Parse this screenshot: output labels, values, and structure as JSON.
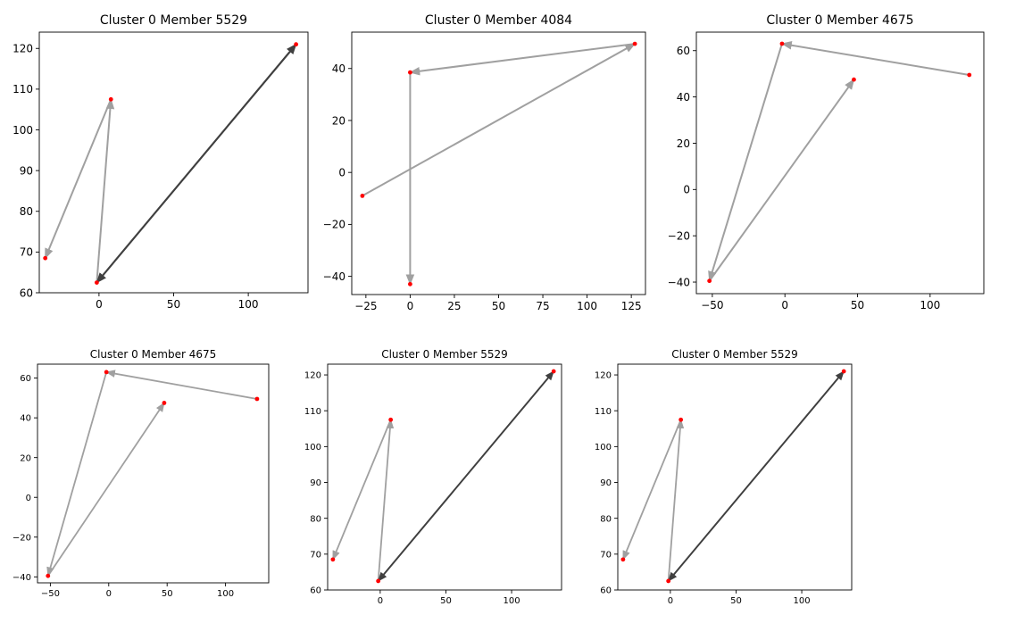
{
  "chart_data": [
    {
      "type": "line",
      "title": "Cluster 0 Member 5529",
      "xlim": [
        -40,
        140
      ],
      "ylim": [
        60,
        124
      ],
      "xticks": [
        0,
        50,
        100
      ],
      "yticks": [
        60,
        70,
        80,
        90,
        100,
        110,
        120
      ],
      "points": [
        [
          -36,
          68.5
        ],
        [
          -1.5,
          62.5
        ],
        [
          8,
          107.5
        ],
        [
          132,
          121
        ]
      ],
      "arrows": [
        {
          "from": [
            8,
            107.5
          ],
          "to": [
            -36,
            68.5
          ],
          "color": "#a0a0a0"
        },
        {
          "from": [
            -1.5,
            62.5
          ],
          "to": [
            8,
            107.5
          ],
          "color": "#a0a0a0"
        },
        {
          "from": [
            -1.5,
            62.5
          ],
          "to": [
            132,
            121
          ],
          "color": "#404040"
        },
        {
          "from": [
            132,
            121
          ],
          "to": [
            -1.5,
            62.5
          ],
          "color": "#404040"
        }
      ]
    },
    {
      "type": "line",
      "title": "Cluster 0 Member 4084",
      "xlim": [
        -33,
        133
      ],
      "ylim": [
        -47,
        54
      ],
      "xticks": [
        -25,
        0,
        25,
        50,
        75,
        100,
        125
      ],
      "yticks": [
        -40,
        -20,
        0,
        20,
        40
      ],
      "points": [
        [
          -27,
          -9
        ],
        [
          0,
          -43
        ],
        [
          0,
          38.5
        ],
        [
          127,
          49.5
        ]
      ],
      "arrows": [
        {
          "from": [
            -27,
            -9
          ],
          "to": [
            127,
            49.5
          ],
          "color": "#a0a0a0"
        },
        {
          "from": [
            127,
            49.5
          ],
          "to": [
            0,
            38.5
          ],
          "color": "#a0a0a0"
        },
        {
          "from": [
            0,
            38.5
          ],
          "to": [
            0,
            -43
          ],
          "color": "#a0a0a0"
        }
      ]
    },
    {
      "type": "line",
      "title": "Cluster 0 Member 4675",
      "xlim": [
        -61,
        137
      ],
      "ylim": [
        -45,
        68
      ],
      "xticks": [
        -50,
        0,
        50,
        100
      ],
      "yticks": [
        -40,
        -20,
        0,
        20,
        40,
        60
      ],
      "points": [
        [
          -52,
          -39.5
        ],
        [
          -2,
          63
        ],
        [
          47.5,
          47.5
        ],
        [
          127,
          49.5
        ]
      ],
      "arrows": [
        {
          "from": [
            127,
            49.5
          ],
          "to": [
            -2,
            63
          ],
          "color": "#a0a0a0"
        },
        {
          "from": [
            -2,
            63
          ],
          "to": [
            -52,
            -39.5
          ],
          "color": "#a0a0a0"
        },
        {
          "from": [
            -52,
            -39.5
          ],
          "to": [
            47.5,
            47.5
          ],
          "color": "#a0a0a0"
        }
      ]
    },
    {
      "type": "line",
      "title": "Cluster 0 Member 4675",
      "xlim": [
        -61,
        137
      ],
      "ylim": [
        -43,
        67
      ],
      "xticks": [
        -50,
        0,
        50,
        100
      ],
      "yticks": [
        -40,
        -20,
        0,
        20,
        40,
        60
      ],
      "points": [
        [
          -52,
          -39.5
        ],
        [
          -2,
          63
        ],
        [
          47.5,
          47.5
        ],
        [
          127,
          49.5
        ]
      ],
      "arrows": [
        {
          "from": [
            127,
            49.5
          ],
          "to": [
            -2,
            63
          ],
          "color": "#a0a0a0"
        },
        {
          "from": [
            -2,
            63
          ],
          "to": [
            -52,
            -39.5
          ],
          "color": "#a0a0a0"
        },
        {
          "from": [
            -52,
            -39.5
          ],
          "to": [
            47.5,
            47.5
          ],
          "color": "#a0a0a0"
        }
      ]
    },
    {
      "type": "line",
      "title": "Cluster 0 Member 5529",
      "xlim": [
        -40,
        138
      ],
      "ylim": [
        60,
        123
      ],
      "xticks": [
        0,
        50,
        100
      ],
      "yticks": [
        60,
        70,
        80,
        90,
        100,
        110,
        120
      ],
      "points": [
        [
          -36,
          68.5
        ],
        [
          -1.5,
          62.5
        ],
        [
          8,
          107.5
        ],
        [
          132,
          121
        ]
      ],
      "arrows": [
        {
          "from": [
            8,
            107.5
          ],
          "to": [
            -36,
            68.5
          ],
          "color": "#a0a0a0"
        },
        {
          "from": [
            -1.5,
            62.5
          ],
          "to": [
            8,
            107.5
          ],
          "color": "#a0a0a0"
        },
        {
          "from": [
            -1.5,
            62.5
          ],
          "to": [
            132,
            121
          ],
          "color": "#404040"
        },
        {
          "from": [
            132,
            121
          ],
          "to": [
            -1.5,
            62.5
          ],
          "color": "#404040"
        }
      ]
    },
    {
      "type": "line",
      "title": "Cluster 0 Member 5529",
      "xlim": [
        -40,
        138
      ],
      "ylim": [
        60,
        123
      ],
      "xticks": [
        0,
        50,
        100
      ],
      "yticks": [
        60,
        70,
        80,
        90,
        100,
        110,
        120
      ],
      "points": [
        [
          -36,
          68.5
        ],
        [
          -1.5,
          62.5
        ],
        [
          8,
          107.5
        ],
        [
          132,
          121
        ]
      ],
      "arrows": [
        {
          "from": [
            8,
            107.5
          ],
          "to": [
            -36,
            68.5
          ],
          "color": "#a0a0a0"
        },
        {
          "from": [
            -1.5,
            62.5
          ],
          "to": [
            8,
            107.5
          ],
          "color": "#a0a0a0"
        },
        {
          "from": [
            -1.5,
            62.5
          ],
          "to": [
            132,
            121
          ],
          "color": "#404040"
        },
        {
          "from": [
            132,
            121
          ],
          "to": [
            -1.5,
            62.5
          ],
          "color": "#404040"
        }
      ]
    }
  ],
  "colors": {
    "point": "#ff0000",
    "axis": "#000000"
  }
}
